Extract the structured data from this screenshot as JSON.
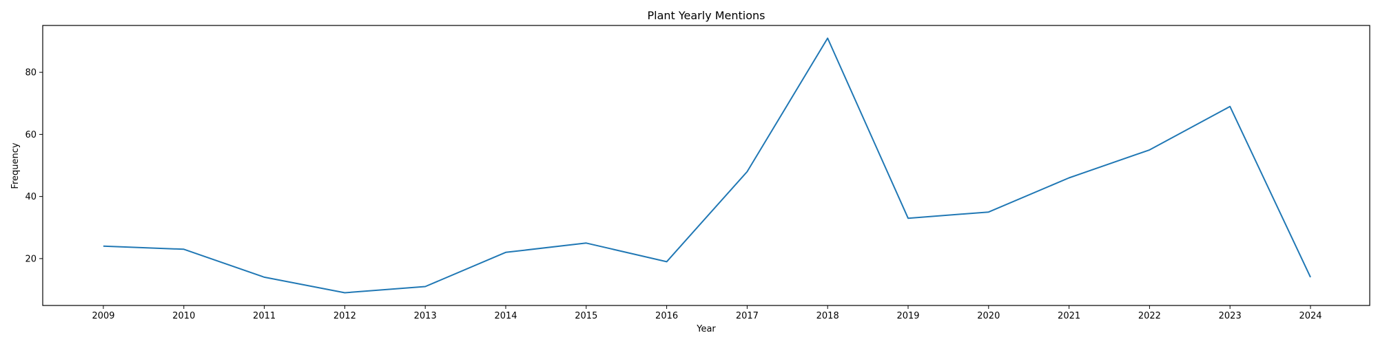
{
  "chart_data": {
    "type": "line",
    "title": "Plant Yearly Mentions",
    "xlabel": "Year",
    "ylabel": "Frequency",
    "x": [
      "2009",
      "2010",
      "2011",
      "2012",
      "2013",
      "2014",
      "2015",
      "2016",
      "2017",
      "2018",
      "2019",
      "2020",
      "2021",
      "2022",
      "2023",
      "2024"
    ],
    "series": [
      {
        "values": [
          24,
          23,
          14,
          9,
          11,
          22,
          25,
          19,
          48,
          91,
          33,
          35,
          46,
          55,
          69,
          14
        ],
        "color": "#1f77b4"
      }
    ],
    "yticks": [
      20,
      40,
      60,
      80
    ],
    "ylim": [
      4.9,
      95.1
    ],
    "grid": false,
    "legend": "none"
  }
}
